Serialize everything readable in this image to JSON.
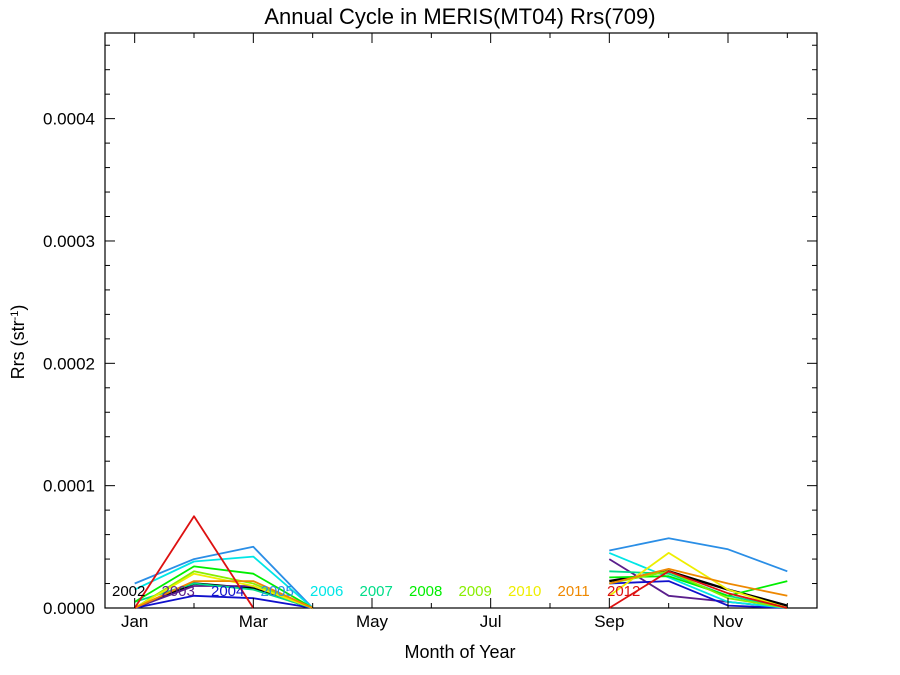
{
  "chart_data": {
    "type": "line",
    "title": "Annual Cycle in MERIS(MT04) Rrs(709)",
    "xlabel": "Month of Year",
    "ylabel": "Rrs (str",
    "ylabel_sup": "-1",
    "ylabel_close": ")",
    "xlim": [
      0.5,
      12.5
    ],
    "ylim": [
      0,
      0.00047
    ],
    "x_ticks": [
      {
        "value": 1,
        "label": "Jan"
      },
      {
        "value": 3,
        "label": "Mar"
      },
      {
        "value": 5,
        "label": "May"
      },
      {
        "value": 7,
        "label": "Jul"
      },
      {
        "value": 9,
        "label": "Sep"
      },
      {
        "value": 11,
        "label": "Nov"
      }
    ],
    "y_ticks": [
      {
        "value": 0,
        "label": "0.0000"
      },
      {
        "value": 0.0001,
        "label": "0.0001"
      },
      {
        "value": 0.0002,
        "label": "0.0002"
      },
      {
        "value": 0.0003,
        "label": "0.0003"
      },
      {
        "value": 0.0004,
        "label": "0.0004"
      }
    ],
    "grid": false,
    "legend": "bottom-inside",
    "series": [
      {
        "name": "2002",
        "color": "#000000",
        "values": [
          0,
          2e-05,
          1.6e-05,
          0,
          null,
          null,
          null,
          null,
          2.2e-05,
          3e-05,
          1.5e-05,
          2e-06
        ]
      },
      {
        "name": "2003",
        "color": "#5a1e8c",
        "values": [
          0,
          1.8e-05,
          1.8e-05,
          0,
          null,
          null,
          null,
          null,
          4e-05,
          1e-05,
          5e-06,
          0
        ]
      },
      {
        "name": "2004",
        "color": "#1010cc",
        "values": [
          0,
          1e-05,
          8e-06,
          0,
          null,
          null,
          null,
          null,
          2e-05,
          2.2e-05,
          2e-06,
          0
        ]
      },
      {
        "name": "2005",
        "color": "#2a8ee6",
        "values": [
          2e-05,
          4e-05,
          5e-05,
          0,
          null,
          null,
          null,
          null,
          4.7e-05,
          5.7e-05,
          4.8e-05,
          3e-05
        ]
      },
      {
        "name": "2006",
        "color": "#00e6e6",
        "values": [
          1.5e-05,
          3.8e-05,
          4.2e-05,
          0,
          null,
          null,
          null,
          null,
          4.5e-05,
          2.5e-05,
          5e-06,
          0
        ]
      },
      {
        "name": "2007",
        "color": "#00dd88",
        "values": [
          5e-06,
          2e-05,
          1.5e-05,
          0,
          null,
          null,
          null,
          null,
          3e-05,
          2.8e-05,
          1e-05,
          0
        ]
      },
      {
        "name": "2008",
        "color": "#00ee00",
        "values": [
          5e-06,
          3.4e-05,
          2.8e-05,
          0,
          null,
          null,
          null,
          null,
          2.5e-05,
          2.6e-05,
          1e-05,
          2.2e-05
        ]
      },
      {
        "name": "2009",
        "color": "#88ee00",
        "values": [
          0,
          3e-05,
          2e-05,
          0,
          null,
          null,
          null,
          null,
          2e-05,
          3e-05,
          8e-06,
          0
        ]
      },
      {
        "name": "2010",
        "color": "#eeee00",
        "values": [
          0,
          2.8e-05,
          1.8e-05,
          0,
          null,
          null,
          null,
          null,
          1e-05,
          4.5e-05,
          1.5e-05,
          0
        ]
      },
      {
        "name": "2011",
        "color": "#ee8800",
        "values": [
          0,
          2.2e-05,
          2.2e-05,
          0,
          null,
          null,
          null,
          null,
          2e-05,
          3.2e-05,
          2e-05,
          1e-05
        ]
      },
      {
        "name": "2012",
        "color": "#dd1111",
        "values": [
          0,
          7.5e-05,
          0,
          null,
          null,
          null,
          null,
          null,
          0,
          3e-05,
          1.2e-05,
          0
        ]
      }
    ]
  }
}
